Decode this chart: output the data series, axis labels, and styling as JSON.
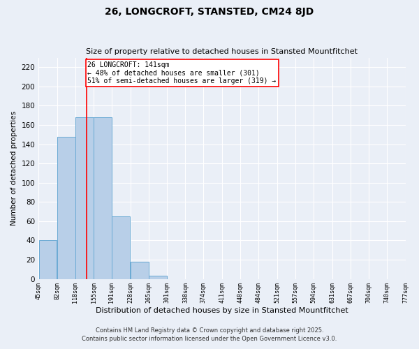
{
  "title": "26, LONGCROFT, STANSTED, CM24 8JD",
  "subtitle": "Size of property relative to detached houses in Stansted Mountfitchet",
  "xlabel": "Distribution of detached houses by size in Stansted Mountfitchet",
  "ylabel": "Number of detached properties",
  "footnote1": "Contains HM Land Registry data © Crown copyright and database right 2025.",
  "footnote2": "Contains public sector information licensed under the Open Government Licence v3.0.",
  "annotation_title": "26 LONGCROFT: 141sqm",
  "annotation_line1": "← 48% of detached houses are smaller (301)",
  "annotation_line2": "51% of semi-detached houses are larger (319) →",
  "property_line_x": 141,
  "bar_edges": [
    45,
    82,
    118,
    155,
    191,
    228,
    265,
    301,
    338,
    374,
    411,
    448,
    484,
    521,
    557,
    594,
    631,
    667,
    704,
    740,
    777
  ],
  "bar_heights": [
    40,
    148,
    168,
    168,
    65,
    18,
    3,
    0,
    0,
    0,
    0,
    0,
    0,
    0,
    0,
    0,
    0,
    0,
    0,
    0
  ],
  "bar_color": "#b8cfe8",
  "bar_edge_color": "#6aaad4",
  "vline_color": "red",
  "annotation_box_color": "red",
  "background_color": "#eaeff7",
  "ylim": [
    0,
    230
  ],
  "yticks": [
    0,
    20,
    40,
    60,
    80,
    100,
    120,
    140,
    160,
    180,
    200,
    220
  ]
}
